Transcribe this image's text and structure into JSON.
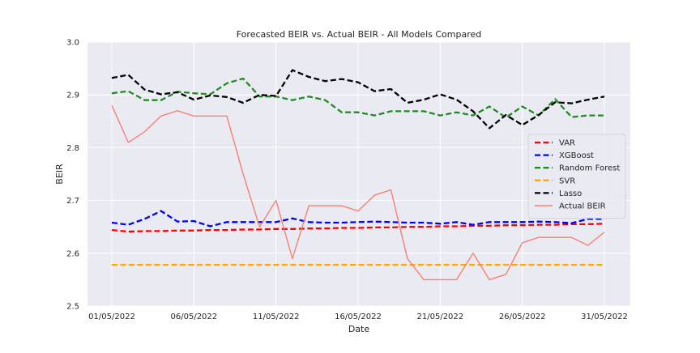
{
  "chart_data": {
    "type": "line",
    "title": "Forecasted BEIR vs. Actual BEIR - All Models Compared",
    "xlabel": "Date",
    "ylabel": "BEIR",
    "ylim": [
      2.5,
      3.0
    ],
    "yticks": [
      "2.5",
      "2.6",
      "2.7",
      "2.8",
      "2.9",
      "3.0"
    ],
    "x_tick_labels": [
      "01/05/2022",
      "06/05/2022",
      "11/05/2022",
      "16/05/2022",
      "21/05/2022",
      "26/05/2022",
      "31/05/2022"
    ],
    "x_tick_days": [
      1,
      6,
      11,
      16,
      21,
      26,
      31
    ],
    "x_days": [
      1,
      2,
      3,
      4,
      5,
      6,
      7,
      8,
      9,
      10,
      11,
      12,
      13,
      14,
      15,
      16,
      17,
      18,
      19,
      20,
      21,
      22,
      23,
      24,
      25,
      26,
      27,
      28,
      29,
      30,
      31
    ],
    "grid": true,
    "legend_position": "center-right",
    "series": [
      {
        "name": "VAR",
        "color": "#ff0000",
        "style": "dashed",
        "values": [
          2.644,
          2.641,
          2.642,
          2.642,
          2.643,
          2.643,
          2.644,
          2.644,
          2.645,
          2.645,
          2.646,
          2.646,
          2.647,
          2.647,
          2.648,
          2.648,
          2.649,
          2.649,
          2.65,
          2.65,
          2.651,
          2.651,
          2.652,
          2.652,
          2.653,
          2.653,
          2.654,
          2.654,
          2.655,
          2.655,
          2.656
        ]
      },
      {
        "name": "XGBoost",
        "color": "#0000ff",
        "style": "dashed",
        "values": [
          2.658,
          2.654,
          2.665,
          2.68,
          2.66,
          2.661,
          2.651,
          2.659,
          2.659,
          2.659,
          2.659,
          2.666,
          2.659,
          2.658,
          2.658,
          2.659,
          2.66,
          2.659,
          2.658,
          2.658,
          2.656,
          2.659,
          2.654,
          2.659,
          2.659,
          2.659,
          2.66,
          2.659,
          2.657,
          2.665,
          2.665
        ]
      },
      {
        "name": "Random Forest",
        "color": "#228b22",
        "style": "dashed",
        "values": [
          2.903,
          2.907,
          2.89,
          2.89,
          2.906,
          2.903,
          2.901,
          2.922,
          2.931,
          2.897,
          2.897,
          2.89,
          2.897,
          2.89,
          2.867,
          2.867,
          2.861,
          2.869,
          2.869,
          2.869,
          2.861,
          2.867,
          2.861,
          2.878,
          2.857,
          2.878,
          2.861,
          2.892,
          2.858,
          2.861,
          2.861
        ]
      },
      {
        "name": "SVR",
        "color": "#ffa500",
        "style": "dashed",
        "values": [
          2.578,
          2.578,
          2.578,
          2.578,
          2.578,
          2.578,
          2.578,
          2.578,
          2.578,
          2.578,
          2.578,
          2.578,
          2.578,
          2.578,
          2.578,
          2.578,
          2.578,
          2.578,
          2.578,
          2.578,
          2.578,
          2.578,
          2.578,
          2.578,
          2.578,
          2.578,
          2.578,
          2.578,
          2.578,
          2.578,
          2.578
        ]
      },
      {
        "name": "Lasso",
        "color": "#000000",
        "style": "dashed",
        "values": [
          2.932,
          2.938,
          2.91,
          2.901,
          2.905,
          2.891,
          2.899,
          2.896,
          2.885,
          2.9,
          2.898,
          2.947,
          2.934,
          2.926,
          2.93,
          2.924,
          2.907,
          2.911,
          2.885,
          2.891,
          2.901,
          2.891,
          2.869,
          2.837,
          2.862,
          2.843,
          2.862,
          2.886,
          2.884,
          2.891,
          2.897
        ]
      },
      {
        "name": "Actual BEIR",
        "color": "#fa8072",
        "style": "solid",
        "values": [
          2.88,
          2.81,
          2.83,
          2.86,
          2.87,
          2.86,
          2.86,
          2.86,
          2.75,
          2.65,
          2.7,
          2.59,
          2.69,
          2.69,
          2.69,
          2.68,
          2.71,
          2.72,
          2.59,
          2.55,
          2.55,
          2.55,
          2.6,
          2.55,
          2.56,
          2.62,
          2.63,
          2.63,
          2.63,
          2.615,
          2.64
        ]
      }
    ]
  }
}
